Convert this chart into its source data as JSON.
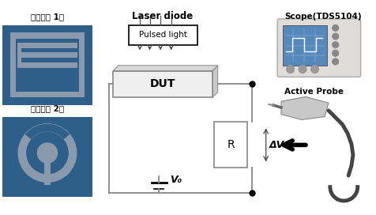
{
  "bg_color": "#ffffff",
  "laser_diode_label": "Laser diode",
  "pulsed_light_label": "Pulsed light",
  "dut_label": "DUT",
  "r_label": "R",
  "dv_label": "ΔV",
  "v0_label": "V₀",
  "scope_label": "Scope(TDS5104)",
  "active_probe_label": "Active Probe",
  "pattern1_label": "전극패턴 1안",
  "pattern2_label": "전극패턴 2안",
  "blue_color": "#2e5f8a",
  "gray_elec": "#8a9aac",
  "circuit_color": "#888888",
  "circuit_lw": 1.3
}
